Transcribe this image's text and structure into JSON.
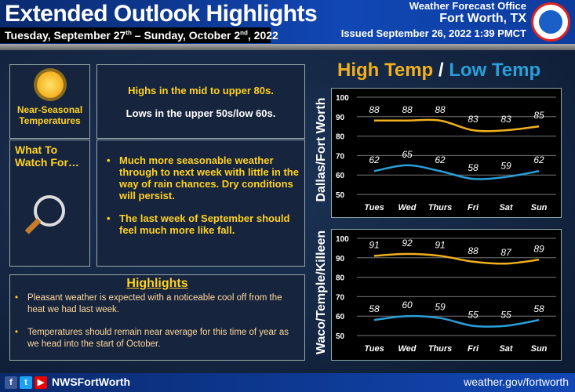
{
  "header": {
    "title": "Extended Outlook Highlights",
    "dates_pre": "Tuesday, September 27",
    "sup1": "th",
    "dates_mid": " – Sunday, October 2",
    "sup2": "nd",
    "dates_post": ", 2022",
    "office": "Weather Forecast Office",
    "location": "Fort Worth, TX",
    "issued": "Issued September 26, 2022 1:39 PMCT",
    "logo_text": "NATIONAL WEATHER SERVICE"
  },
  "summary": {
    "icon_label": "Near-Seasonal Temperatures",
    "highs": "Highs in the mid to upper 80s.",
    "lows": "Lows in the upper 50s/low 60s.",
    "watch_label": "What To Watch For…",
    "bullets": [
      "Much more seasonable weather through to next week with little in the way of rain chances. Dry conditions will persist.",
      "The last week of September should feel much more like fall."
    ]
  },
  "highlights": {
    "title": "Highlights",
    "bullets": [
      "Pleasant weather is expected with a noticeable cool off from the heat we had last week.",
      "Temperatures should remain near average for this time of year as we head into the start of October."
    ]
  },
  "chart_header": {
    "high": "High Temp",
    "sep": " / ",
    "low": "Low Temp"
  },
  "colors": {
    "high": "#f2b01e",
    "low": "#2a9fd8"
  },
  "chart_data": [
    {
      "type": "line",
      "title": "Dallas/Fort Worth",
      "categories": [
        "Tues",
        "Wed",
        "Thurs",
        "Fri",
        "Sat",
        "Sun"
      ],
      "ylim": [
        50,
        100
      ],
      "yticks": [
        50,
        60,
        70,
        80,
        90,
        100
      ],
      "series": [
        {
          "name": "High Temp",
          "values": [
            88,
            88,
            88,
            83,
            83,
            85
          ]
        },
        {
          "name": "Low Temp",
          "values": [
            62,
            65,
            62,
            58,
            59,
            62
          ]
        }
      ]
    },
    {
      "type": "line",
      "title": "Waco/Temple/Killeen",
      "categories": [
        "Tues",
        "Wed",
        "Thurs",
        "Fri",
        "Sat",
        "Sun"
      ],
      "ylim": [
        50,
        100
      ],
      "yticks": [
        50,
        60,
        70,
        80,
        90,
        100
      ],
      "series": [
        {
          "name": "High Temp",
          "values": [
            91,
            92,
            91,
            88,
            87,
            89
          ]
        },
        {
          "name": "Low Temp",
          "values": [
            58,
            60,
            59,
            55,
            55,
            58
          ]
        }
      ]
    }
  ],
  "footer": {
    "handle": "NWSFortWorth",
    "url": "weather.gov/fortworth",
    "icons": [
      "f",
      "t",
      "▶"
    ]
  }
}
